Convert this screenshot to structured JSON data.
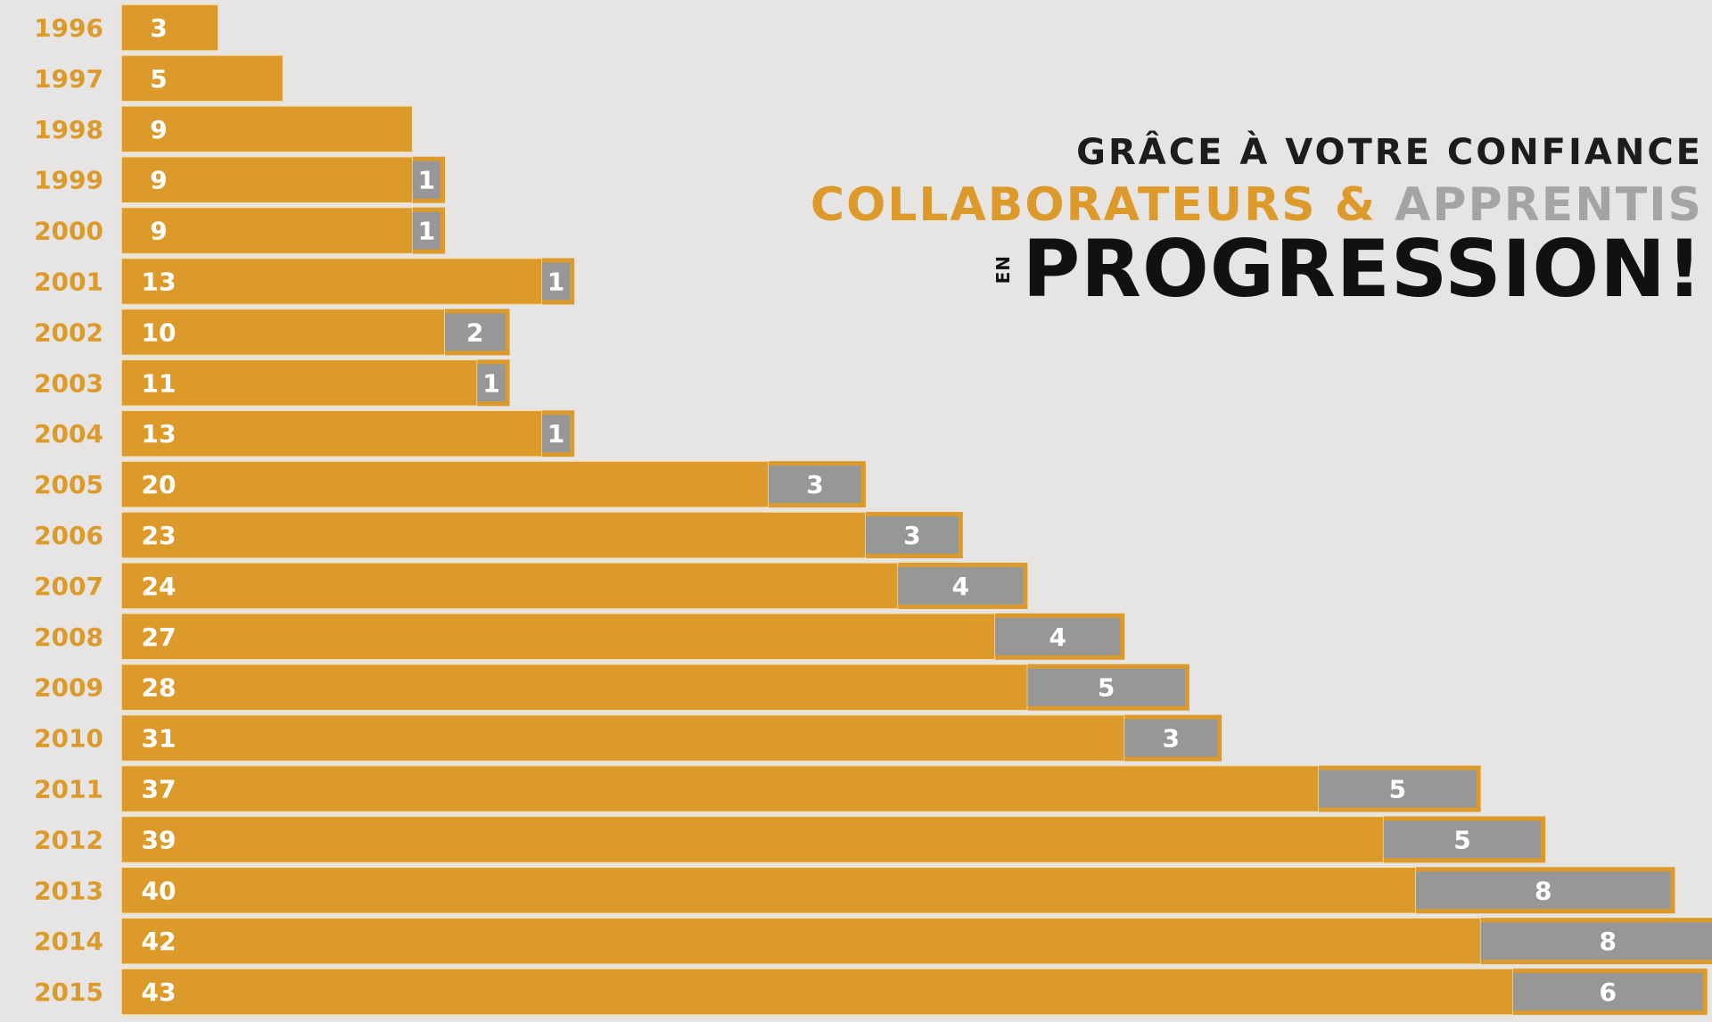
{
  "heading": {
    "line1": "GRÂCE À VOTRE CONFIANCE",
    "line2_collab": "COLLABORATEURS",
    "line2_amp": "&",
    "line2_appr": "APPRENTIS",
    "line3_small": "EN",
    "line3_big": "PROGRESSION!"
  },
  "colors": {
    "collaborateurs": "#dc9a2b",
    "apprentis": "#979797",
    "background": "#e6e5e3"
  },
  "chart_data": {
    "type": "bar",
    "orientation": "horizontal",
    "stacked": true,
    "categories": [
      "1996",
      "1997",
      "1998",
      "1999",
      "2000",
      "2001",
      "2002",
      "2003",
      "2004",
      "2005",
      "2006",
      "2007",
      "2008",
      "2009",
      "2010",
      "2011",
      "2012",
      "2013",
      "2014",
      "2015"
    ],
    "series": [
      {
        "name": "COLLABORATEURS",
        "values": [
          3,
          5,
          9,
          9,
          9,
          13,
          10,
          11,
          13,
          20,
          23,
          24,
          27,
          28,
          31,
          37,
          39,
          40,
          42,
          43
        ]
      },
      {
        "name": "APPRENTIS",
        "values": [
          0,
          0,
          0,
          1,
          1,
          1,
          2,
          1,
          1,
          3,
          3,
          4,
          4,
          5,
          3,
          5,
          5,
          8,
          8,
          6
        ]
      }
    ],
    "title": "",
    "xlabel": "",
    "ylabel": "",
    "grid": false
  }
}
